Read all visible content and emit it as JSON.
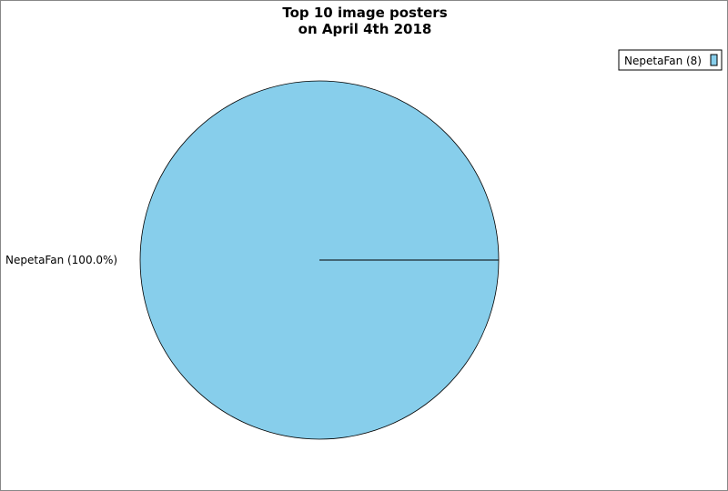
{
  "chart_data": {
    "type": "pie",
    "title_lines": [
      "Top 10 image posters",
      "on April 4th 2018"
    ],
    "slices": [
      {
        "label": "NepetaFan",
        "value": 8,
        "percent_label": "NepetaFan (100.0%)",
        "legend_label": "NepetaFan (8)",
        "color": "#87ceeb"
      }
    ],
    "legend_position": "top-right"
  }
}
